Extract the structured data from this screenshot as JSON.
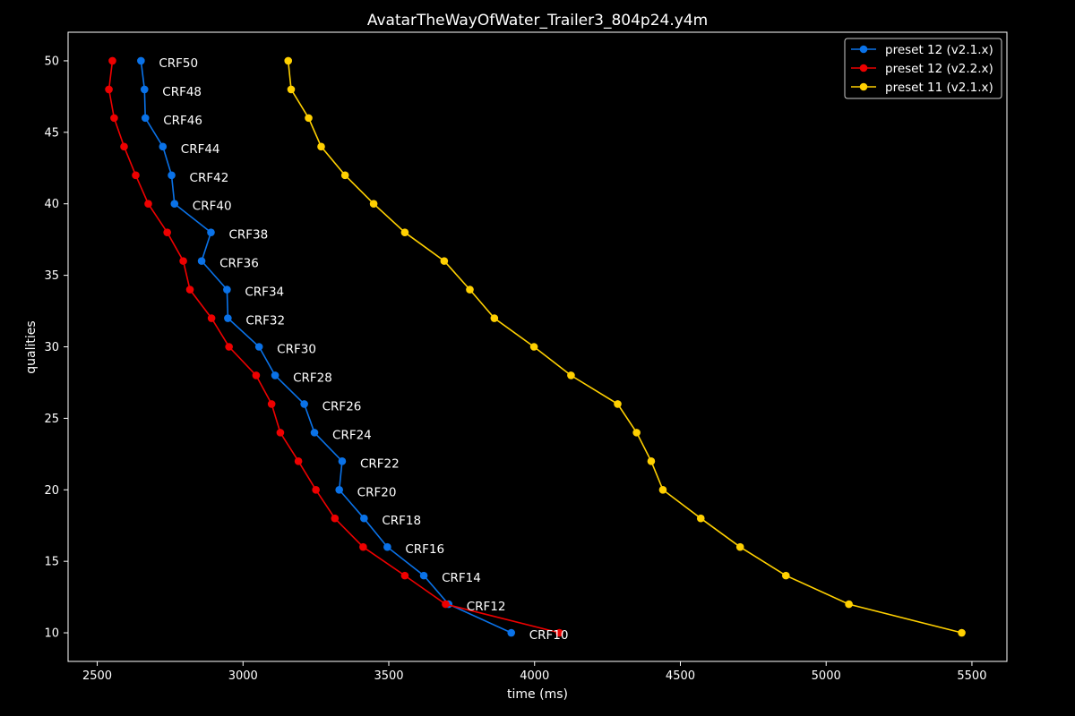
{
  "chart_data": {
    "type": "line",
    "title": "AvatarTheWayOfWater_Trailer3_804p24.y4m",
    "xlabel": "time (ms)",
    "ylabel": "qualities",
    "xlim": [
      2400,
      5620
    ],
    "ylim": [
      8,
      52
    ],
    "xticks": [
      2500,
      3000,
      3500,
      4000,
      4500,
      5000,
      5500
    ],
    "yticks": [
      10,
      15,
      20,
      25,
      30,
      35,
      40,
      45,
      50
    ],
    "grid": false,
    "legend_position": "top-right",
    "series": [
      {
        "name": "preset 12 (v2.1.x)",
        "color": "#0a72e8",
        "points": [
          [
            2650,
            50
          ],
          [
            2662,
            48
          ],
          [
            2665,
            46
          ],
          [
            2725,
            44
          ],
          [
            2755,
            42
          ],
          [
            2765,
            40
          ],
          [
            2890,
            38
          ],
          [
            2858,
            36
          ],
          [
            2945,
            34
          ],
          [
            2948,
            32
          ],
          [
            3055,
            30
          ],
          [
            3110,
            28
          ],
          [
            3210,
            26
          ],
          [
            3245,
            24
          ],
          [
            3340,
            22
          ],
          [
            3330,
            20
          ],
          [
            3415,
            18
          ],
          [
            3495,
            16
          ],
          [
            3620,
            14
          ],
          [
            3705,
            12
          ],
          [
            3920,
            10
          ]
        ]
      },
      {
        "name": "preset 12 (v2.2.x)",
        "color": "#ee0000",
        "points": [
          [
            2552,
            50
          ],
          [
            2540,
            48
          ],
          [
            2558,
            46
          ],
          [
            2592,
            44
          ],
          [
            2632,
            42
          ],
          [
            2675,
            40
          ],
          [
            2740,
            38
          ],
          [
            2795,
            36
          ],
          [
            2818,
            34
          ],
          [
            2892,
            32
          ],
          [
            2952,
            30
          ],
          [
            3045,
            28
          ],
          [
            3098,
            26
          ],
          [
            3128,
            24
          ],
          [
            3190,
            22
          ],
          [
            3250,
            20
          ],
          [
            3315,
            18
          ],
          [
            3412,
            16
          ],
          [
            3555,
            14
          ],
          [
            3695,
            12
          ],
          [
            4085,
            10
          ]
        ]
      },
      {
        "name": "preset 11 (v2.1.x)",
        "color": "#ffd000",
        "points": [
          [
            3155,
            50
          ],
          [
            3165,
            48
          ],
          [
            3225,
            46
          ],
          [
            3268,
            44
          ],
          [
            3350,
            42
          ],
          [
            3448,
            40
          ],
          [
            3555,
            38
          ],
          [
            3690,
            36
          ],
          [
            3778,
            34
          ],
          [
            3862,
            32
          ],
          [
            3998,
            30
          ],
          [
            4125,
            28
          ],
          [
            4285,
            26
          ],
          [
            4350,
            24
          ],
          [
            4400,
            22
          ],
          [
            4440,
            20
          ],
          [
            4570,
            18
          ],
          [
            4705,
            16
          ],
          [
            4862,
            14
          ],
          [
            5078,
            12
          ],
          [
            5465,
            10
          ]
        ]
      }
    ],
    "annotations": [
      {
        "text": "CRF50",
        "x": 2650,
        "y": 50
      },
      {
        "text": "CRF48",
        "x": 2662,
        "y": 48
      },
      {
        "text": "CRF46",
        "x": 2665,
        "y": 46
      },
      {
        "text": "CRF44",
        "x": 2725,
        "y": 44
      },
      {
        "text": "CRF42",
        "x": 2755,
        "y": 42
      },
      {
        "text": "CRF40",
        "x": 2765,
        "y": 40
      },
      {
        "text": "CRF38",
        "x": 2890,
        "y": 38
      },
      {
        "text": "CRF36",
        "x": 2858,
        "y": 36
      },
      {
        "text": "CRF34",
        "x": 2945,
        "y": 34
      },
      {
        "text": "CRF32",
        "x": 2948,
        "y": 32
      },
      {
        "text": "CRF30",
        "x": 3055,
        "y": 30
      },
      {
        "text": "CRF28",
        "x": 3110,
        "y": 28
      },
      {
        "text": "CRF26",
        "x": 3210,
        "y": 26
      },
      {
        "text": "CRF24",
        "x": 3245,
        "y": 24
      },
      {
        "text": "CRF22",
        "x": 3340,
        "y": 22
      },
      {
        "text": "CRF20",
        "x": 3330,
        "y": 20
      },
      {
        "text": "CRF18",
        "x": 3415,
        "y": 18
      },
      {
        "text": "CRF16",
        "x": 3495,
        "y": 16
      },
      {
        "text": "CRF14",
        "x": 3620,
        "y": 14
      },
      {
        "text": "CRF12",
        "x": 3705,
        "y": 12
      },
      {
        "text": "CRF10",
        "x": 3920,
        "y": 10
      }
    ]
  }
}
